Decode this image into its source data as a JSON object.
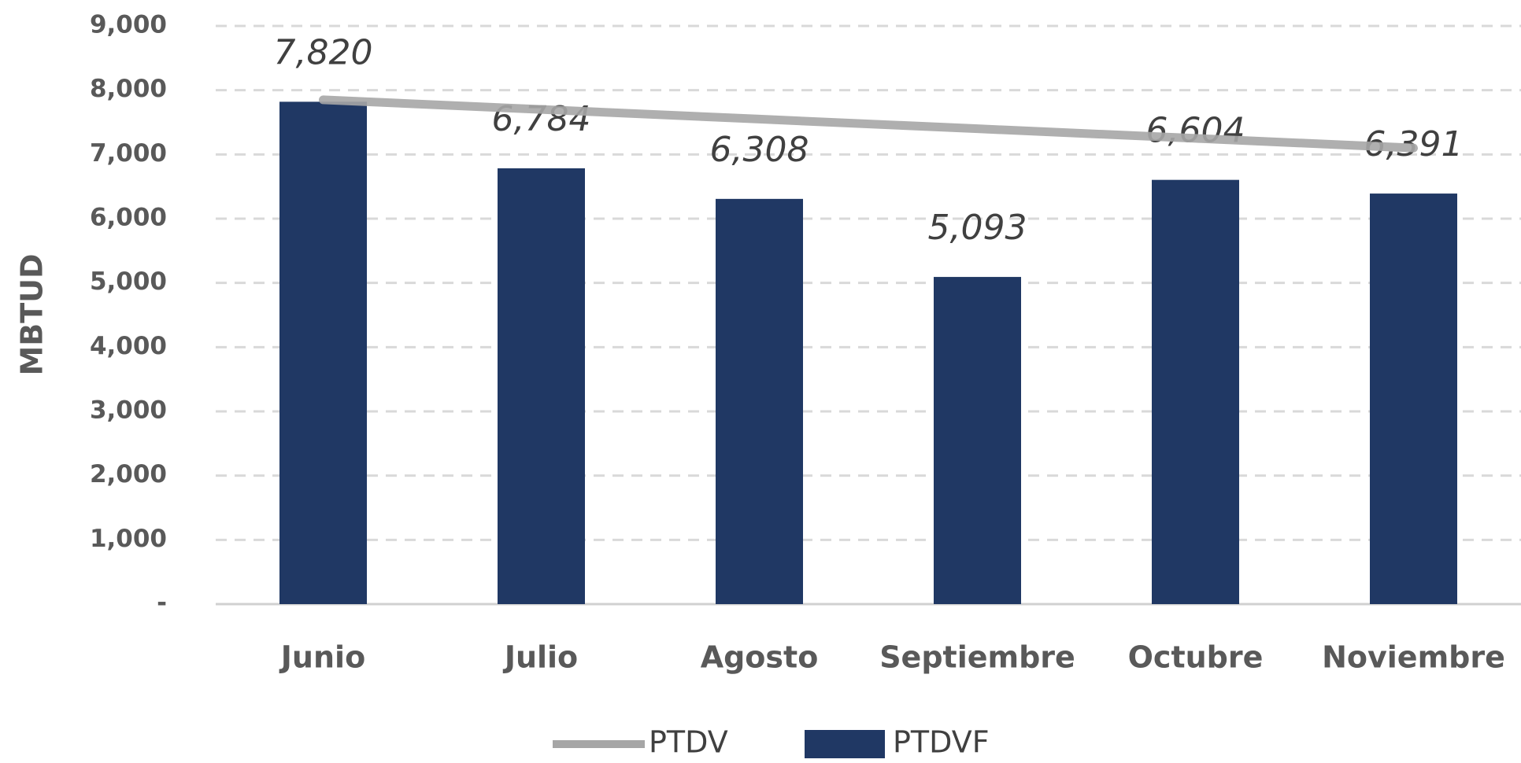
{
  "chart_data": {
    "type": "bar_line",
    "categories": [
      "Junio",
      "Julio",
      "Agosto",
      "Septiembre",
      "Octubre",
      "Noviembre"
    ],
    "series": [
      {
        "name": "PTDV",
        "type": "line",
        "color": "#a6a6a6",
        "values": [
          7850,
          7700,
          7550,
          7400,
          7250,
          7100
        ]
      },
      {
        "name": "PTDVF",
        "type": "bar",
        "color": "#203864",
        "values": [
          7820,
          6784,
          6308,
          5093,
          6604,
          6391
        ],
        "value_labels": [
          "7,820",
          "6,784",
          "6,308",
          "5,093",
          "6,604",
          "6,391"
        ]
      }
    ],
    "y_label": "MBTUD",
    "ylim": [
      0,
      9000
    ],
    "yticks": [
      {
        "value": 0,
        "label": "-"
      },
      {
        "value": 1000,
        "label": "1,000"
      },
      {
        "value": 2000,
        "label": "2,000"
      },
      {
        "value": 3000,
        "label": "3,000"
      },
      {
        "value": 4000,
        "label": "4,000"
      },
      {
        "value": 5000,
        "label": "5,000"
      },
      {
        "value": 6000,
        "label": "6,000"
      },
      {
        "value": 7000,
        "label": "7,000"
      },
      {
        "value": 8000,
        "label": "8,000"
      },
      {
        "value": 9000,
        "label": "9,000"
      }
    ],
    "grid": true,
    "legend": "bottom"
  }
}
